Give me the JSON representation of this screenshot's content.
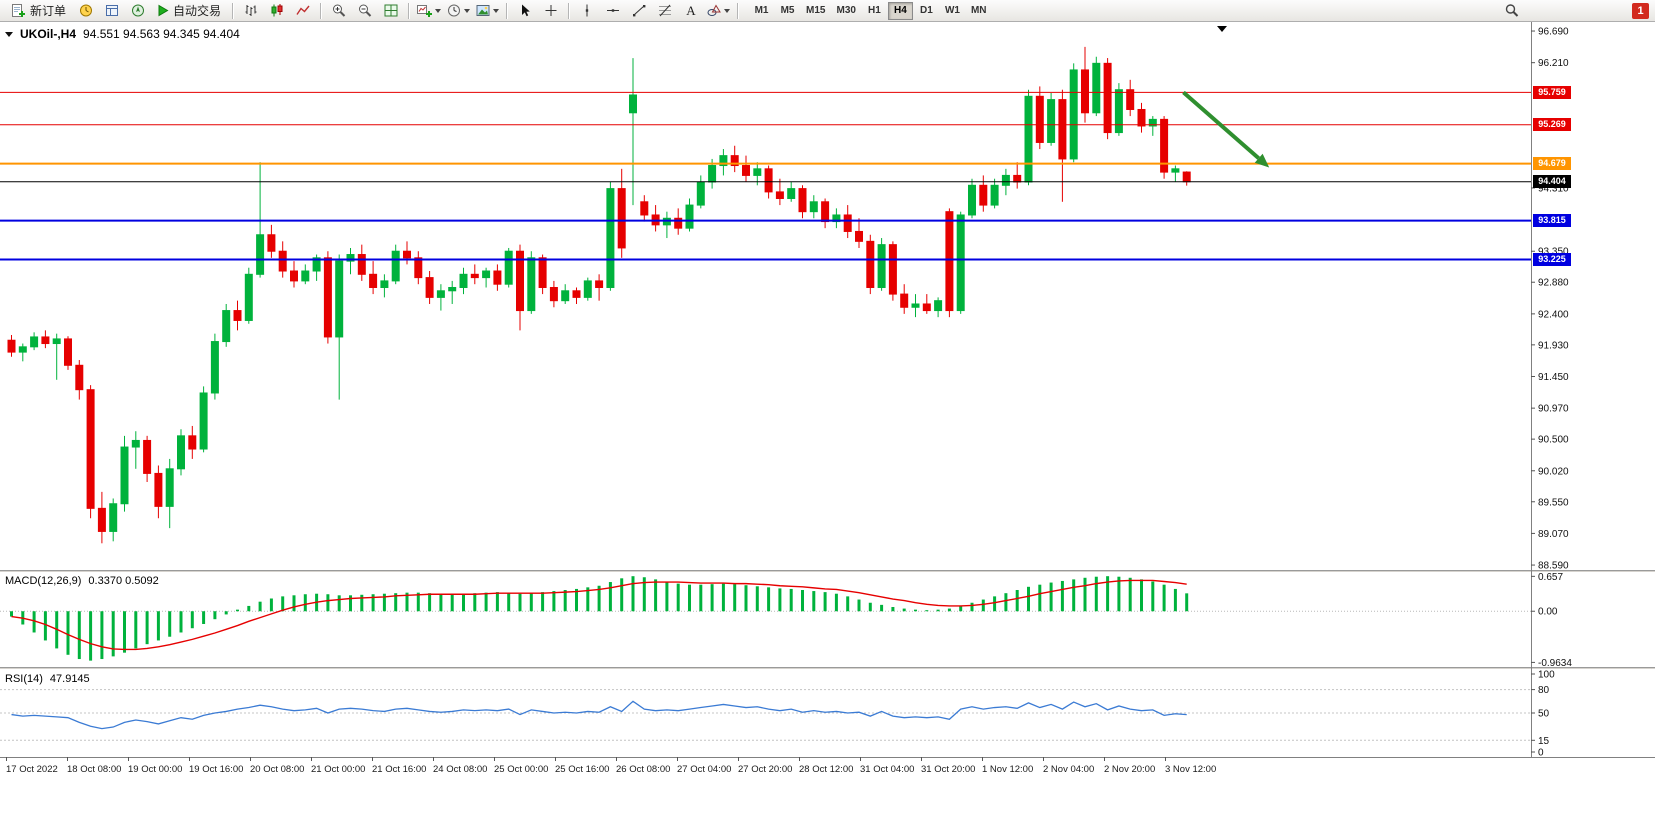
{
  "toolbar": {
    "new_order_label": "新订单",
    "autotrade_label": "自动交易",
    "timeframes": [
      "M1",
      "M5",
      "M15",
      "M30",
      "H1",
      "H4",
      "D1",
      "W1",
      "MN"
    ],
    "active_timeframe": "H4",
    "notification_count": "1",
    "icon_names": [
      "new-order",
      "market-watch",
      "data-window",
      "navigator",
      "autotrade-play",
      "bar-chart",
      "candlestick-chart",
      "line-chart",
      "zoom-in",
      "zoom-out",
      "tile-windows",
      "new-chart",
      "periods",
      "templates",
      "cursor",
      "crosshair",
      "vertical-line",
      "horizontal-line",
      "trend-line",
      "fibonacci",
      "text-label",
      "shapes",
      "search"
    ]
  },
  "colors": {
    "bull": "#00b23c",
    "bear": "#e60000",
    "macd_histogram": "#00b23c",
    "macd_signal": "#e60000",
    "rsi_line": "#3b7bd4",
    "level_red": "#e60000",
    "level_orange": "#ff9500",
    "level_blue": "#0000e0",
    "current_price": "#000000",
    "arrow_green": "#2f8f2f"
  },
  "chart_data": [
    {
      "type": "candlestick",
      "symbol_period": "UKOil-,H4",
      "ohlc_text": "94.551 94.563 94.345 94.404",
      "price_axis": {
        "max": 96.827,
        "min": 88.515,
        "labels": [
          "96.690",
          "96.210",
          "94.310",
          "93.350",
          "92.880",
          "92.400",
          "91.930",
          "91.450",
          "90.970",
          "90.500",
          "90.020",
          "89.550",
          "89.070",
          "88.590"
        ]
      },
      "horizontal_levels": [
        {
          "label": "95.759",
          "value": 95.759,
          "color_key": "level_red",
          "width": 1
        },
        {
          "label": "95.269",
          "value": 95.269,
          "color_key": "level_red",
          "width": 1
        },
        {
          "label": "94.679",
          "value": 94.679,
          "color_key": "level_orange",
          "width": 2
        },
        {
          "label": "94.404",
          "value": 94.404,
          "color_key": "current_price",
          "width": 1
        },
        {
          "label": "93.815",
          "value": 93.815,
          "color_key": "level_blue",
          "width": 2
        },
        {
          "label": "93.225",
          "value": 93.225,
          "color_key": "level_blue",
          "width": 2
        }
      ],
      "time_labels": [
        "17 Oct 2022",
        "18 Oct 08:00",
        "19 Oct 00:00",
        "19 Oct 16:00",
        "20 Oct 08:00",
        "21 Oct 00:00",
        "21 Oct 16:00",
        "24 Oct 08:00",
        "25 Oct 00:00",
        "25 Oct 16:00",
        "26 Oct 08:00",
        "27 Oct 04:00",
        "27 Oct 20:00",
        "28 Oct 12:00",
        "31 Oct 04:00",
        "31 Oct 20:00",
        "1 Nov 12:00",
        "2 Nov 04:00",
        "2 Nov 20:00",
        "3 Nov 12:00"
      ],
      "candles": [
        [
          92.0,
          92.08,
          91.75,
          91.82
        ],
        [
          91.82,
          91.95,
          91.68,
          91.9
        ],
        [
          91.9,
          92.12,
          91.85,
          92.05
        ],
        [
          92.05,
          92.15,
          91.88,
          91.95
        ],
        [
          91.95,
          92.1,
          91.4,
          92.02
        ],
        [
          92.02,
          92.06,
          91.55,
          91.62
        ],
        [
          91.62,
          91.7,
          91.1,
          91.25
        ],
        [
          91.25,
          91.32,
          89.3,
          89.45
        ],
        [
          89.45,
          89.7,
          88.92,
          89.1
        ],
        [
          89.1,
          89.6,
          88.95,
          89.52
        ],
        [
          89.52,
          90.55,
          89.4,
          90.38
        ],
        [
          90.38,
          90.62,
          90.05,
          90.48
        ],
        [
          90.48,
          90.55,
          89.85,
          89.98
        ],
        [
          89.98,
          90.1,
          89.3,
          89.48
        ],
        [
          89.48,
          90.2,
          89.15,
          90.05
        ],
        [
          90.05,
          90.65,
          89.95,
          90.55
        ],
        [
          90.55,
          90.7,
          90.2,
          90.35
        ],
        [
          90.35,
          91.3,
          90.3,
          91.2
        ],
        [
          91.2,
          92.1,
          91.1,
          91.98
        ],
        [
          91.98,
          92.55,
          91.9,
          92.45
        ],
        [
          92.45,
          92.6,
          92.15,
          92.3
        ],
        [
          92.3,
          93.1,
          92.25,
          93.0
        ],
        [
          93.0,
          94.7,
          92.95,
          93.6
        ],
        [
          93.6,
          93.75,
          93.25,
          93.35
        ],
        [
          93.35,
          93.5,
          92.95,
          93.05
        ],
        [
          93.05,
          93.2,
          92.8,
          92.9
        ],
        [
          92.9,
          93.15,
          92.85,
          93.05
        ],
        [
          93.05,
          93.3,
          92.9,
          93.25
        ],
        [
          93.25,
          93.35,
          91.95,
          92.05
        ],
        [
          92.05,
          93.3,
          91.1,
          93.2
        ],
        [
          93.2,
          93.4,
          93.0,
          93.3
        ],
        [
          93.3,
          93.45,
          92.9,
          93.0
        ],
        [
          93.0,
          93.2,
          92.7,
          92.8
        ],
        [
          92.8,
          93.0,
          92.65,
          92.9
        ],
        [
          92.9,
          93.45,
          92.85,
          93.35
        ],
        [
          93.35,
          93.5,
          93.15,
          93.25
        ],
        [
          93.25,
          93.35,
          92.85,
          92.95
        ],
        [
          92.95,
          93.05,
          92.55,
          92.65
        ],
        [
          92.65,
          92.85,
          92.45,
          92.75
        ],
        [
          92.75,
          92.9,
          92.55,
          92.8
        ],
        [
          92.8,
          93.1,
          92.7,
          93.0
        ],
        [
          93.0,
          93.15,
          92.85,
          92.95
        ],
        [
          92.95,
          93.1,
          92.8,
          93.05
        ],
        [
          93.05,
          93.15,
          92.75,
          92.85
        ],
        [
          92.85,
          93.4,
          92.8,
          93.35
        ],
        [
          93.35,
          93.45,
          92.15,
          92.45
        ],
        [
          92.45,
          93.35,
          92.4,
          93.25
        ],
        [
          93.25,
          93.3,
          92.7,
          92.8
        ],
        [
          92.8,
          92.9,
          92.5,
          92.6
        ],
        [
          92.6,
          92.85,
          92.55,
          92.75
        ],
        [
          92.75,
          92.8,
          92.55,
          92.65
        ],
        [
          92.65,
          92.95,
          92.6,
          92.9
        ],
        [
          92.9,
          93.0,
          92.6,
          92.8
        ],
        [
          92.8,
          94.4,
          92.75,
          94.3
        ],
        [
          94.3,
          94.6,
          93.25,
          93.4
        ],
        [
          95.45,
          96.28,
          94.05,
          95.72
        ],
        [
          94.1,
          94.2,
          93.8,
          93.9
        ],
        [
          93.9,
          94.05,
          93.65,
          93.75
        ],
        [
          93.75,
          93.95,
          93.55,
          93.85
        ],
        [
          93.85,
          94.0,
          93.6,
          93.7
        ],
        [
          93.7,
          94.15,
          93.65,
          94.05
        ],
        [
          94.05,
          94.5,
          94.0,
          94.4
        ],
        [
          94.4,
          94.75,
          94.3,
          94.65
        ],
        [
          94.65,
          94.9,
          94.5,
          94.8
        ],
        [
          94.8,
          94.95,
          94.55,
          94.65
        ],
        [
          94.65,
          94.8,
          94.4,
          94.5
        ],
        [
          94.5,
          94.7,
          94.35,
          94.6
        ],
        [
          94.6,
          94.65,
          94.15,
          94.25
        ],
        [
          94.25,
          94.45,
          94.05,
          94.15
        ],
        [
          94.15,
          94.4,
          94.1,
          94.3
        ],
        [
          94.3,
          94.35,
          93.85,
          93.95
        ],
        [
          93.95,
          94.2,
          93.85,
          94.1
        ],
        [
          94.1,
          94.15,
          93.7,
          93.8
        ],
        [
          93.8,
          94.0,
          93.7,
          93.9
        ],
        [
          93.9,
          94.05,
          93.55,
          93.65
        ],
        [
          93.65,
          93.85,
          93.4,
          93.5
        ],
        [
          93.5,
          93.6,
          92.7,
          92.8
        ],
        [
          92.8,
          93.55,
          92.75,
          93.45
        ],
        [
          93.45,
          93.5,
          92.6,
          92.7
        ],
        [
          92.7,
          92.85,
          92.4,
          92.5
        ],
        [
          92.5,
          92.7,
          92.35,
          92.55
        ],
        [
          92.55,
          92.7,
          92.4,
          92.45
        ],
        [
          92.45,
          92.65,
          92.35,
          92.6
        ],
        [
          93.95,
          94.0,
          92.35,
          92.45
        ],
        [
          92.45,
          93.95,
          92.4,
          93.9
        ],
        [
          93.9,
          94.45,
          93.85,
          94.35
        ],
        [
          94.35,
          94.5,
          93.95,
          94.05
        ],
        [
          94.05,
          94.45,
          94.0,
          94.35
        ],
        [
          94.35,
          94.6,
          94.2,
          94.5
        ],
        [
          94.5,
          94.7,
          94.3,
          94.4
        ],
        [
          94.4,
          95.8,
          94.35,
          95.7
        ],
        [
          95.7,
          95.85,
          94.9,
          95.0
        ],
        [
          95.0,
          95.75,
          94.95,
          95.65
        ],
        [
          95.65,
          95.8,
          94.1,
          94.75
        ],
        [
          94.75,
          96.2,
          94.7,
          96.1
        ],
        [
          96.1,
          96.45,
          95.3,
          95.45
        ],
        [
          95.45,
          96.3,
          95.4,
          96.2
        ],
        [
          96.2,
          96.28,
          95.05,
          95.15
        ],
        [
          95.15,
          95.9,
          95.1,
          95.8
        ],
        [
          95.8,
          95.95,
          95.4,
          95.5
        ],
        [
          95.5,
          95.6,
          95.15,
          95.25
        ],
        [
          95.25,
          95.4,
          95.1,
          95.35
        ],
        [
          95.35,
          95.4,
          94.45,
          94.55
        ],
        [
          94.55,
          94.65,
          94.4,
          94.6
        ],
        [
          94.551,
          94.563,
          94.345,
          94.404
        ]
      ],
      "trend_arrow": {
        "x1_frac": 0.773,
        "price1": 95.76,
        "x2_frac": 0.829,
        "price2": 94.62
      }
    },
    {
      "type": "bar",
      "name": "MACD",
      "label_text": "MACD(12,26,9)",
      "values_text": "0.3370 0.5092",
      "axis_labels": [
        "0.657",
        "0.00",
        "-0.9634"
      ],
      "scale": {
        "max": 0.72,
        "min": -1.05
      },
      "histogram": [
        -0.1,
        -0.25,
        -0.4,
        -0.55,
        -0.7,
        -0.82,
        -0.9,
        -0.93,
        -0.9,
        -0.85,
        -0.78,
        -0.7,
        -0.62,
        -0.55,
        -0.48,
        -0.4,
        -0.32,
        -0.24,
        -0.15,
        -0.06,
        0.03,
        0.1,
        0.18,
        0.24,
        0.28,
        0.3,
        0.32,
        0.33,
        0.32,
        0.3,
        0.3,
        0.31,
        0.32,
        0.33,
        0.34,
        0.35,
        0.35,
        0.34,
        0.33,
        0.32,
        0.33,
        0.34,
        0.35,
        0.36,
        0.35,
        0.33,
        0.34,
        0.36,
        0.38,
        0.4,
        0.42,
        0.45,
        0.48,
        0.55,
        0.62,
        0.66,
        0.64,
        0.6,
        0.56,
        0.52,
        0.5,
        0.5,
        0.51,
        0.52,
        0.51,
        0.49,
        0.47,
        0.45,
        0.43,
        0.42,
        0.4,
        0.38,
        0.36,
        0.33,
        0.28,
        0.22,
        0.16,
        0.12,
        0.08,
        0.05,
        0.03,
        0.02,
        0.03,
        0.05,
        0.1,
        0.16,
        0.22,
        0.28,
        0.34,
        0.4,
        0.46,
        0.5,
        0.54,
        0.57,
        0.6,
        0.63,
        0.65,
        0.66,
        0.65,
        0.63,
        0.6,
        0.56,
        0.5,
        0.42,
        0.337
      ],
      "signal": [
        -0.1,
        -0.13,
        -0.18,
        -0.25,
        -0.34,
        -0.44,
        -0.53,
        -0.61,
        -0.67,
        -0.71,
        -0.72,
        -0.72,
        -0.7,
        -0.67,
        -0.63,
        -0.58,
        -0.53,
        -0.47,
        -0.41,
        -0.34,
        -0.27,
        -0.19,
        -0.12,
        -0.05,
        0.02,
        0.08,
        0.13,
        0.17,
        0.2,
        0.22,
        0.24,
        0.25,
        0.26,
        0.27,
        0.29,
        0.3,
        0.31,
        0.32,
        0.32,
        0.32,
        0.32,
        0.32,
        0.33,
        0.34,
        0.34,
        0.34,
        0.34,
        0.34,
        0.35,
        0.36,
        0.37,
        0.39,
        0.41,
        0.44,
        0.48,
        0.52,
        0.54,
        0.55,
        0.55,
        0.55,
        0.54,
        0.53,
        0.53,
        0.53,
        0.52,
        0.52,
        0.51,
        0.5,
        0.48,
        0.47,
        0.46,
        0.44,
        0.42,
        0.41,
        0.38,
        0.35,
        0.31,
        0.27,
        0.23,
        0.2,
        0.16,
        0.13,
        0.11,
        0.1,
        0.1,
        0.11,
        0.13,
        0.16,
        0.2,
        0.24,
        0.28,
        0.33,
        0.37,
        0.41,
        0.45,
        0.48,
        0.52,
        0.55,
        0.57,
        0.58,
        0.58,
        0.58,
        0.56,
        0.54,
        0.5092
      ]
    },
    {
      "type": "line",
      "name": "RSI",
      "label_text": "RSI(14)",
      "value_text": "47.9145",
      "axis_labels": [
        "100",
        "80",
        "50",
        "15",
        "0"
      ],
      "levels": [
        80,
        50,
        15
      ],
      "scale": {
        "max": 100,
        "min": 0
      },
      "values": [
        48,
        46,
        47,
        46,
        45,
        44,
        38,
        33,
        30,
        32,
        38,
        41,
        39,
        36,
        40,
        44,
        42,
        47,
        50,
        52,
        55,
        57,
        60,
        58,
        55,
        53,
        54,
        56,
        50,
        55,
        56,
        55,
        53,
        52,
        55,
        56,
        54,
        52,
        51,
        52,
        54,
        53,
        54,
        53,
        55,
        48,
        54,
        52,
        50,
        51,
        50,
        52,
        51,
        58,
        52,
        65,
        55,
        53,
        54,
        53,
        55,
        57,
        59,
        61,
        59,
        57,
        58,
        55,
        53,
        55,
        51,
        53,
        51,
        52,
        50,
        51,
        46,
        52,
        46,
        44,
        45,
        44,
        45,
        42,
        55,
        58,
        55,
        57,
        58,
        56,
        63,
        57,
        61,
        55,
        64,
        58,
        62,
        54,
        59,
        55,
        53,
        54,
        47,
        49,
        47.9
      ]
    }
  ]
}
